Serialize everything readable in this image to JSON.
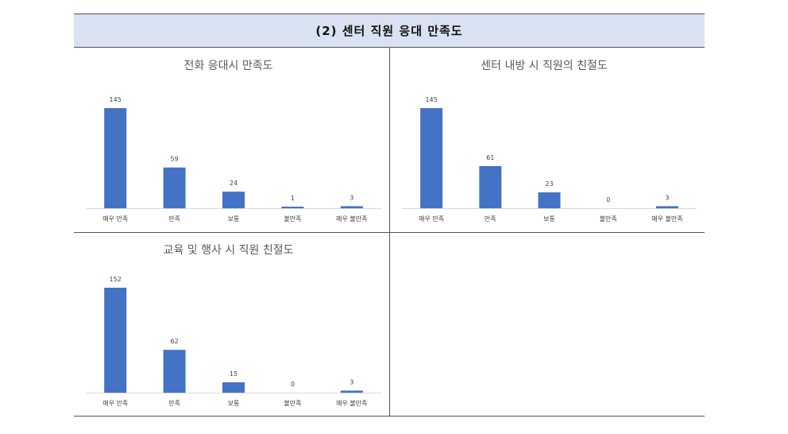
{
  "header": {
    "title": "(2) 센터 직원 응대 만족도"
  },
  "colors": {
    "bar": "#4472c4",
    "header_bg": "#d9e2f3",
    "title_text": "#595959",
    "label_text": "#404040"
  },
  "chart_data": [
    {
      "type": "bar",
      "title": "전화 응대시 만족도",
      "categories": [
        "매우 만족",
        "만족",
        "보통",
        "불만족",
        "매우 불만족"
      ],
      "values": [
        145,
        59,
        24,
        1,
        3
      ],
      "ylim": [
        0,
        160
      ]
    },
    {
      "type": "bar",
      "title": "센터 내방 시 직원의 친절도",
      "categories": [
        "매우 만족",
        "만족",
        "보통",
        "불만족",
        "매우 불만족"
      ],
      "values": [
        145,
        61,
        23,
        0,
        3
      ],
      "ylim": [
        0,
        160
      ]
    },
    {
      "type": "bar",
      "title": "교육 및 행사 시 직원 친절도",
      "categories": [
        "매우 만족",
        "만족",
        "보통",
        "불만족",
        "매우 불만족"
      ],
      "values": [
        152,
        62,
        15,
        0,
        3
      ],
      "ylim": [
        0,
        160
      ]
    }
  ]
}
